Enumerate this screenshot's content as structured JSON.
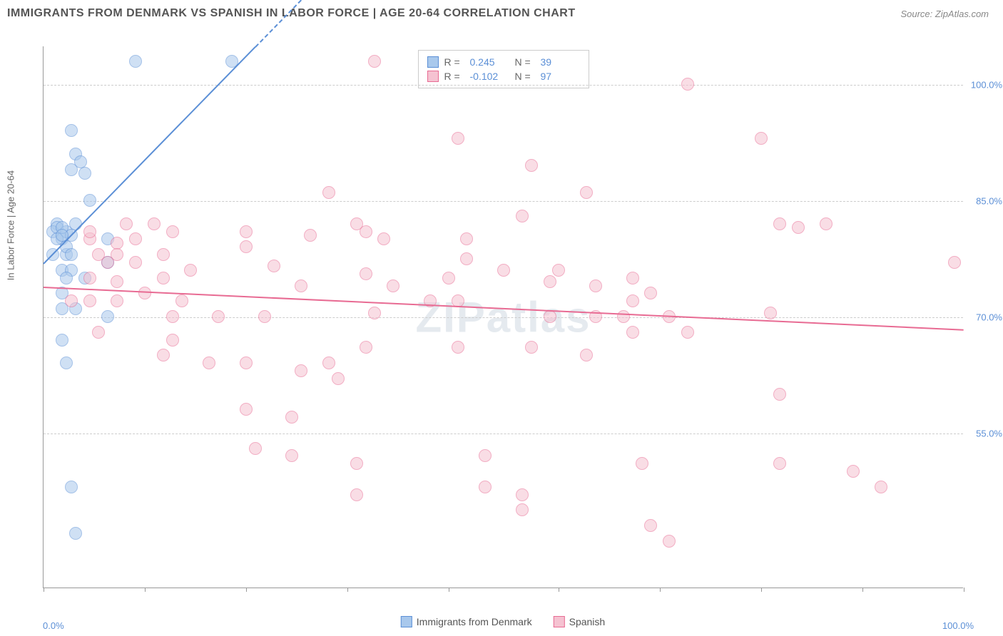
{
  "header": {
    "title": "IMMIGRANTS FROM DENMARK VS SPANISH IN LABOR FORCE | AGE 20-64 CORRELATION CHART",
    "source": "Source: ZipAtlas.com"
  },
  "chart": {
    "type": "scatter",
    "ylabel": "In Labor Force | Age 20-64",
    "watermark": "ZIPatlas",
    "xlim": [
      0,
      100
    ],
    "ylim": [
      35,
      105
    ],
    "x_axis_labels": {
      "left": "0.0%",
      "right": "100.0%"
    },
    "y_ticks": [
      {
        "value": 55,
        "label": "55.0%"
      },
      {
        "value": 70,
        "label": "70.0%"
      },
      {
        "value": 85,
        "label": "85.0%"
      },
      {
        "value": 100,
        "label": "100.0%"
      }
    ],
    "x_tick_positions": [
      0,
      11,
      22,
      33,
      44,
      56,
      67,
      78,
      89,
      100
    ],
    "grid_color": "#cccccc",
    "background_color": "#ffffff",
    "point_radius": 9,
    "point_opacity": 0.55,
    "series": [
      {
        "name": "Immigrants from Denmark",
        "fill_color": "#a8c8ec",
        "stroke_color": "#5b8fd6",
        "r_value": "0.245",
        "n_value": "39",
        "trend": {
          "x1": 0,
          "y1": 77,
          "x2": 23,
          "y2": 105,
          "dashed_x2": 28
        },
        "points": [
          [
            10,
            103
          ],
          [
            20.5,
            103
          ],
          [
            3,
            89
          ],
          [
            3.5,
            91
          ],
          [
            4,
            90
          ],
          [
            4.5,
            88.5
          ],
          [
            3,
            94
          ],
          [
            2.5,
            78
          ],
          [
            2,
            80
          ],
          [
            1.5,
            82
          ],
          [
            3.5,
            82
          ],
          [
            5,
            85
          ],
          [
            1,
            81
          ],
          [
            1.5,
            81.5
          ],
          [
            2.5,
            81
          ],
          [
            2,
            81.5
          ],
          [
            3,
            80.5
          ],
          [
            1.5,
            80
          ],
          [
            2,
            80.5
          ],
          [
            2.5,
            79
          ],
          [
            3,
            78
          ],
          [
            1,
            78
          ],
          [
            2,
            76
          ],
          [
            7,
            77
          ],
          [
            3,
            76
          ],
          [
            4.5,
            75
          ],
          [
            2.5,
            75
          ],
          [
            7,
            80
          ],
          [
            2,
            73
          ],
          [
            2,
            71
          ],
          [
            3.5,
            71
          ],
          [
            7,
            70
          ],
          [
            2,
            67
          ],
          [
            2.5,
            64
          ],
          [
            3,
            48
          ],
          [
            3.5,
            42
          ]
        ]
      },
      {
        "name": "Spanish",
        "fill_color": "#f5c2d1",
        "stroke_color": "#e86b93",
        "r_value": "-0.102",
        "n_value": "97",
        "trend": {
          "x1": 0,
          "y1": 74,
          "x2": 100,
          "y2": 68.5
        },
        "points": [
          [
            36,
            103
          ],
          [
            70,
            100
          ],
          [
            45,
            93
          ],
          [
            53,
            89.5
          ],
          [
            31,
            86
          ],
          [
            59,
            86
          ],
          [
            78,
            93
          ],
          [
            9,
            82
          ],
          [
            12,
            82
          ],
          [
            14,
            81
          ],
          [
            8,
            79.5
          ],
          [
            10,
            80
          ],
          [
            5,
            80
          ],
          [
            6,
            78
          ],
          [
            8,
            78
          ],
          [
            13,
            78
          ],
          [
            22,
            79
          ],
          [
            22,
            81
          ],
          [
            29,
            80.5
          ],
          [
            34,
            82
          ],
          [
            35,
            81
          ],
          [
            37,
            80
          ],
          [
            46,
            80
          ],
          [
            52,
            83
          ],
          [
            80,
            82
          ],
          [
            82,
            81.5
          ],
          [
            85,
            82
          ],
          [
            99,
            77
          ],
          [
            7,
            77
          ],
          [
            10,
            77
          ],
          [
            5,
            75
          ],
          [
            8,
            74.5
          ],
          [
            13,
            75
          ],
          [
            16,
            76
          ],
          [
            25,
            76.5
          ],
          [
            28,
            74
          ],
          [
            35,
            75.5
          ],
          [
            38,
            74
          ],
          [
            44,
            75
          ],
          [
            46,
            77.5
          ],
          [
            42,
            72
          ],
          [
            50,
            76
          ],
          [
            55,
            74.5
          ],
          [
            56,
            76
          ],
          [
            60,
            74
          ],
          [
            64,
            75
          ],
          [
            66,
            73
          ],
          [
            3,
            72
          ],
          [
            5,
            72
          ],
          [
            8,
            72
          ],
          [
            11,
            73
          ],
          [
            15,
            72
          ],
          [
            14,
            70
          ],
          [
            19,
            70
          ],
          [
            24,
            70
          ],
          [
            36,
            70.5
          ],
          [
            45,
            72
          ],
          [
            55,
            70
          ],
          [
            60,
            70
          ],
          [
            63,
            70
          ],
          [
            64,
            72
          ],
          [
            68,
            70
          ],
          [
            79,
            70.5
          ],
          [
            6,
            68
          ],
          [
            14,
            67
          ],
          [
            13,
            65
          ],
          [
            18,
            64
          ],
          [
            22,
            64
          ],
          [
            28,
            63
          ],
          [
            31,
            64
          ],
          [
            32,
            62
          ],
          [
            35,
            66
          ],
          [
            45,
            66
          ],
          [
            53,
            66
          ],
          [
            59,
            65
          ],
          [
            64,
            68
          ],
          [
            70,
            68
          ],
          [
            80,
            60
          ],
          [
            22,
            58
          ],
          [
            27,
            57
          ],
          [
            23,
            53
          ],
          [
            27,
            52
          ],
          [
            34,
            51
          ],
          [
            34,
            47
          ],
          [
            48,
            52
          ],
          [
            48,
            48
          ],
          [
            52,
            47
          ],
          [
            52,
            45
          ],
          [
            65,
            51
          ],
          [
            66,
            43
          ],
          [
            80,
            51
          ],
          [
            88,
            50
          ],
          [
            91,
            48
          ],
          [
            68,
            41
          ],
          [
            5,
            81
          ]
        ]
      }
    ],
    "bottom_legend": [
      {
        "label": "Immigrants from Denmark",
        "fill": "#a8c8ec",
        "stroke": "#5b8fd6"
      },
      {
        "label": "Spanish",
        "fill": "#f5c2d1",
        "stroke": "#e86b93"
      }
    ]
  }
}
